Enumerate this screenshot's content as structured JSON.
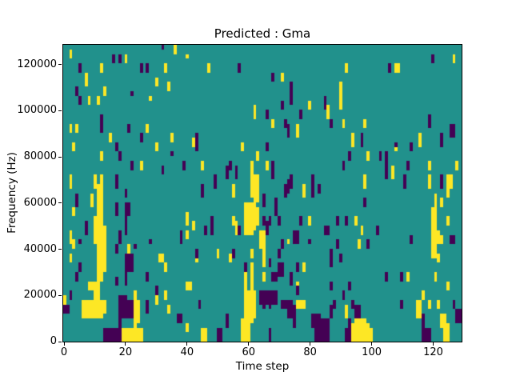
{
  "chart_data": {
    "type": "heatmap",
    "title": "Predicted : Gma",
    "xlabel": "Time step",
    "ylabel": "Frequency (Hz)",
    "x_tick_values": [
      0,
      20,
      40,
      60,
      80,
      100,
      120
    ],
    "x_tick_labels": [
      "0",
      "20",
      "40",
      "60",
      "80",
      "100",
      "120"
    ],
    "y_tick_values": [
      0,
      20000,
      40000,
      60000,
      80000,
      100000,
      120000
    ],
    "y_tick_labels": [
      "0",
      "20000",
      "40000",
      "60000",
      "80000",
      "100000",
      "120000"
    ],
    "x_range": [
      0,
      130
    ],
    "y_range_hz": [
      0,
      128000
    ],
    "grid_cols": 130,
    "grid_rows": 64,
    "colors": {
      "mid_teal": "#21918c",
      "high_yellow": "#fde725",
      "low_purple": "#440154"
    },
    "legend": "none",
    "grid": "off",
    "cells_yellow": [
      [
        2,
        1,
        2
      ],
      [
        36,
        0,
        1
      ],
      [
        20,
        2,
        3
      ],
      [
        40,
        2,
        2
      ],
      [
        127,
        2,
        3
      ],
      [
        12,
        4,
        5
      ],
      [
        33,
        4,
        5
      ],
      [
        47,
        4,
        5
      ],
      [
        92,
        4,
        5
      ],
      [
        108,
        4,
        5
      ],
      [
        109,
        4,
        5
      ],
      [
        7,
        6,
        8
      ],
      [
        71,
        6,
        7
      ],
      [
        30,
        7,
        8
      ],
      [
        34,
        8,
        9
      ],
      [
        90,
        8,
        13
      ],
      [
        13,
        9,
        10
      ],
      [
        8,
        11,
        12
      ],
      [
        11,
        11,
        12
      ],
      [
        28,
        11,
        11
      ],
      [
        80,
        12,
        13
      ],
      [
        62,
        13,
        15
      ],
      [
        86,
        13,
        15
      ],
      [
        68,
        16,
        17
      ],
      [
        91,
        16,
        17
      ],
      [
        98,
        16,
        17
      ],
      [
        2,
        17,
        18
      ],
      [
        4,
        17,
        18
      ],
      [
        27,
        17,
        18
      ],
      [
        76,
        17,
        19
      ],
      [
        15,
        19,
        20
      ],
      [
        35,
        19,
        20
      ],
      [
        42,
        20,
        21
      ],
      [
        94,
        19,
        21
      ],
      [
        116,
        19,
        21
      ],
      [
        3,
        21,
        22
      ],
      [
        30,
        21,
        22
      ],
      [
        58,
        21,
        22
      ],
      [
        108,
        21,
        22
      ],
      [
        12,
        23,
        24
      ],
      [
        63,
        23,
        24
      ],
      [
        99,
        23,
        24
      ],
      [
        25,
        25,
        26
      ],
      [
        45,
        25,
        26
      ],
      [
        61,
        25,
        32
      ],
      [
        66,
        25,
        26
      ],
      [
        119,
        25,
        26
      ],
      [
        128,
        25,
        26
      ],
      [
        107,
        26,
        28
      ],
      [
        2,
        28,
        30
      ],
      [
        10,
        28,
        30
      ],
      [
        12,
        28,
        36
      ],
      [
        62,
        28,
        34
      ],
      [
        63,
        28,
        33
      ],
      [
        98,
        28,
        30
      ],
      [
        119,
        28,
        30
      ],
      [
        125,
        28,
        32
      ],
      [
        126,
        28,
        30
      ],
      [
        11,
        30,
        36
      ],
      [
        55,
        30,
        32
      ],
      [
        78,
        30,
        32
      ],
      [
        9,
        32,
        34
      ],
      [
        121,
        32,
        38
      ],
      [
        123,
        33,
        34
      ],
      [
        59,
        34,
        40
      ],
      [
        60,
        34,
        40
      ],
      [
        61,
        34,
        40
      ],
      [
        3,
        35,
        36
      ],
      [
        62,
        35,
        39
      ],
      [
        63,
        35,
        38
      ],
      [
        120,
        35,
        38
      ],
      [
        40,
        36,
        38
      ],
      [
        55,
        37,
        38
      ],
      [
        80,
        37,
        38
      ],
      [
        95,
        37,
        38
      ],
      [
        125,
        37,
        38
      ],
      [
        10,
        37,
        42
      ],
      [
        11,
        37,
        42
      ],
      [
        12,
        37,
        42
      ],
      [
        56,
        38,
        40
      ],
      [
        42,
        38,
        39
      ],
      [
        13,
        39,
        42
      ],
      [
        97,
        39,
        40
      ],
      [
        120,
        39,
        45
      ],
      [
        121,
        39,
        45
      ],
      [
        2,
        40,
        42
      ],
      [
        40,
        40,
        41
      ],
      [
        64,
        40,
        43
      ],
      [
        65,
        40,
        42
      ],
      [
        122,
        40,
        42
      ],
      [
        123,
        41,
        42
      ],
      [
        3,
        42,
        43
      ],
      [
        11,
        42,
        50
      ],
      [
        12,
        42,
        50
      ],
      [
        13,
        42,
        48
      ],
      [
        96,
        42,
        43
      ],
      [
        73,
        42,
        42
      ],
      [
        21,
        43,
        44
      ],
      [
        65,
        43,
        47
      ],
      [
        50,
        44,
        45
      ],
      [
        61,
        44,
        45
      ],
      [
        2,
        45,
        46
      ],
      [
        31,
        45,
        46
      ],
      [
        32,
        45,
        46
      ],
      [
        43,
        45,
        46
      ],
      [
        54,
        45,
        46
      ],
      [
        122,
        45,
        46
      ],
      [
        33,
        47,
        48
      ],
      [
        61,
        47,
        52
      ],
      [
        78,
        47,
        48
      ],
      [
        59,
        49,
        52
      ],
      [
        65,
        49,
        50
      ],
      [
        112,
        49,
        50
      ],
      [
        121,
        49,
        50
      ],
      [
        8,
        51,
        52
      ],
      [
        9,
        51,
        52
      ],
      [
        10,
        51,
        58
      ],
      [
        11,
        51,
        58
      ],
      [
        40,
        51,
        52
      ],
      [
        41,
        51,
        52
      ],
      [
        76,
        51,
        52
      ],
      [
        125,
        51,
        52
      ],
      [
        23,
        53,
        60
      ],
      [
        33,
        53,
        54
      ],
      [
        59,
        53,
        59
      ],
      [
        60,
        53,
        59
      ],
      [
        61,
        53,
        59
      ],
      [
        62,
        53,
        58
      ],
      [
        117,
        53,
        54
      ],
      [
        0,
        54,
        55
      ],
      [
        30,
        54,
        55
      ],
      [
        24,
        55,
        59
      ],
      [
        6,
        55,
        58
      ],
      [
        7,
        55,
        58
      ],
      [
        8,
        55,
        58
      ],
      [
        9,
        55,
        58
      ],
      [
        12,
        55,
        58
      ],
      [
        13,
        55,
        57
      ],
      [
        76,
        55,
        56
      ],
      [
        77,
        55,
        56
      ],
      [
        78,
        55,
        56
      ],
      [
        115,
        55,
        58
      ],
      [
        116,
        55,
        58
      ],
      [
        119,
        55,
        56
      ],
      [
        122,
        55,
        56
      ],
      [
        34,
        56,
        57
      ],
      [
        92,
        56,
        58
      ],
      [
        58,
        59,
        63
      ],
      [
        95,
        59,
        63
      ],
      [
        96,
        59,
        63
      ],
      [
        97,
        59,
        63
      ],
      [
        98,
        59,
        63
      ],
      [
        123,
        58,
        60
      ],
      [
        124,
        58,
        63
      ],
      [
        40,
        60,
        61
      ],
      [
        59,
        60,
        63
      ],
      [
        60,
        60,
        63
      ],
      [
        94,
        60,
        63
      ],
      [
        99,
        60,
        63
      ],
      [
        125,
        60,
        63
      ],
      [
        19,
        61,
        63
      ],
      [
        20,
        61,
        63
      ],
      [
        21,
        61,
        63
      ],
      [
        22,
        61,
        63
      ],
      [
        23,
        61,
        63
      ],
      [
        24,
        61,
        63
      ],
      [
        25,
        61,
        63
      ],
      [
        45,
        61,
        63
      ],
      [
        46,
        61,
        63
      ],
      [
        100,
        61,
        63
      ]
    ],
    "cells_purple": [
      [
        32,
        0,
        0
      ],
      [
        16,
        2,
        3
      ],
      [
        18,
        2,
        3
      ],
      [
        120,
        2,
        3
      ],
      [
        5,
        4,
        5
      ],
      [
        25,
        4,
        5
      ],
      [
        27,
        4,
        5
      ],
      [
        57,
        4,
        5
      ],
      [
        106,
        4,
        5
      ],
      [
        68,
        6,
        7
      ],
      [
        74,
        8,
        10
      ],
      [
        4,
        9,
        10
      ],
      [
        22,
        10,
        10
      ],
      [
        5,
        11,
        12
      ],
      [
        74,
        11,
        12
      ],
      [
        85,
        11,
        13
      ],
      [
        71,
        12,
        13
      ],
      [
        66,
        14,
        15
      ],
      [
        77,
        14,
        15
      ],
      [
        12,
        15,
        18
      ],
      [
        119,
        15,
        17
      ],
      [
        72,
        16,
        17
      ],
      [
        87,
        16,
        17
      ],
      [
        21,
        17,
        18
      ],
      [
        73,
        17,
        19
      ],
      [
        126,
        17,
        19
      ],
      [
        127,
        17,
        19
      ],
      [
        25,
        19,
        20
      ],
      [
        43,
        19,
        22
      ],
      [
        97,
        19,
        21
      ],
      [
        123,
        19,
        21
      ],
      [
        66,
        21,
        22
      ],
      [
        108,
        21,
        21
      ],
      [
        17,
        21,
        22
      ],
      [
        113,
        21,
        22
      ],
      [
        18,
        23,
        24
      ],
      [
        35,
        23,
        23
      ],
      [
        93,
        23,
        24
      ],
      [
        103,
        23,
        24
      ],
      [
        105,
        23,
        28
      ],
      [
        22,
        25,
        26
      ],
      [
        39,
        25,
        26
      ],
      [
        54,
        25,
        26
      ],
      [
        68,
        25,
        28
      ],
      [
        91,
        25,
        26
      ],
      [
        112,
        25,
        26
      ],
      [
        32,
        26,
        27
      ],
      [
        53,
        26,
        28
      ],
      [
        56,
        26,
        28
      ],
      [
        17,
        28,
        30
      ],
      [
        49,
        28,
        30
      ],
      [
        74,
        28,
        30
      ],
      [
        81,
        28,
        32
      ],
      [
        111,
        28,
        30
      ],
      [
        123,
        28,
        30
      ],
      [
        73,
        29,
        31
      ],
      [
        45,
        30,
        32
      ],
      [
        72,
        30,
        32
      ],
      [
        83,
        30,
        31
      ],
      [
        20,
        31,
        32
      ],
      [
        4,
        32,
        34
      ],
      [
        65,
        32,
        34
      ],
      [
        69,
        33,
        36
      ],
      [
        98,
        33,
        34
      ],
      [
        17,
        34,
        36
      ],
      [
        20,
        34,
        38
      ],
      [
        21,
        34,
        36
      ],
      [
        65,
        37,
        38
      ],
      [
        67,
        37,
        38
      ],
      [
        70,
        37,
        38
      ],
      [
        77,
        37,
        38
      ],
      [
        48,
        37,
        40
      ],
      [
        89,
        37,
        38
      ],
      [
        92,
        37,
        38
      ],
      [
        7,
        38,
        40
      ],
      [
        66,
        38,
        40
      ],
      [
        20,
        39,
        40
      ],
      [
        46,
        39,
        40
      ],
      [
        57,
        39,
        40
      ],
      [
        85,
        39,
        40
      ],
      [
        86,
        39,
        40
      ],
      [
        102,
        39,
        40
      ],
      [
        18,
        40,
        42
      ],
      [
        38,
        40,
        41
      ],
      [
        75,
        40,
        42
      ],
      [
        76,
        40,
        42
      ],
      [
        113,
        41,
        42
      ],
      [
        126,
        41,
        42
      ],
      [
        127,
        41,
        42
      ],
      [
        5,
        42,
        42
      ],
      [
        28,
        42,
        42
      ],
      [
        38,
        42,
        42
      ],
      [
        71,
        42,
        43
      ],
      [
        80,
        42,
        42
      ],
      [
        89,
        42,
        43
      ],
      [
        99,
        42,
        43
      ],
      [
        17,
        43,
        44
      ],
      [
        23,
        43,
        43
      ],
      [
        43,
        44,
        45
      ],
      [
        55,
        44,
        45
      ],
      [
        70,
        44,
        45
      ],
      [
        87,
        44,
        47
      ],
      [
        20,
        45,
        48
      ],
      [
        21,
        45,
        48
      ],
      [
        22,
        45,
        48
      ],
      [
        90,
        45,
        46
      ],
      [
        67,
        46,
        47
      ],
      [
        5,
        47,
        48
      ],
      [
        59,
        47,
        48
      ],
      [
        70,
        47,
        49
      ],
      [
        71,
        47,
        49
      ],
      [
        76,
        47,
        48
      ],
      [
        4,
        49,
        50
      ],
      [
        20,
        49,
        51
      ],
      [
        27,
        49,
        50
      ],
      [
        68,
        49,
        50
      ],
      [
        69,
        49,
        50
      ],
      [
        74,
        49,
        51
      ],
      [
        105,
        49,
        50
      ],
      [
        110,
        49,
        50
      ],
      [
        17,
        50,
        51
      ],
      [
        87,
        51,
        52
      ],
      [
        93,
        51,
        52
      ],
      [
        30,
        52,
        53
      ],
      [
        76,
        52,
        53
      ],
      [
        2,
        53,
        54
      ],
      [
        64,
        53,
        55
      ],
      [
        65,
        53,
        56
      ],
      [
        66,
        53,
        55
      ],
      [
        67,
        53,
        56
      ],
      [
        68,
        53,
        55
      ],
      [
        69,
        53,
        55
      ],
      [
        91,
        53,
        54
      ],
      [
        18,
        54,
        60
      ],
      [
        19,
        54,
        58
      ],
      [
        20,
        54,
        58
      ],
      [
        21,
        55,
        58
      ],
      [
        22,
        55,
        58
      ],
      [
        27,
        55,
        57
      ],
      [
        44,
        55,
        56
      ],
      [
        71,
        55,
        56
      ],
      [
        72,
        55,
        56
      ],
      [
        73,
        55,
        58
      ],
      [
        74,
        55,
        58
      ],
      [
        88,
        55,
        56
      ],
      [
        94,
        55,
        56
      ],
      [
        110,
        55,
        56
      ],
      [
        127,
        55,
        56
      ],
      [
        0,
        56,
        57
      ],
      [
        1,
        56,
        57
      ],
      [
        75,
        56,
        60
      ],
      [
        87,
        56,
        58
      ],
      [
        95,
        56,
        58
      ],
      [
        96,
        56,
        58
      ],
      [
        37,
        58,
        59
      ],
      [
        38,
        58,
        59
      ],
      [
        53,
        58,
        60
      ],
      [
        81,
        58,
        60
      ],
      [
        117,
        58,
        60
      ],
      [
        128,
        57,
        59
      ],
      [
        129,
        57,
        59
      ],
      [
        93,
        59,
        60
      ],
      [
        82,
        58,
        63
      ],
      [
        83,
        58,
        63
      ],
      [
        84,
        59,
        63
      ],
      [
        85,
        59,
        63
      ],
      [
        86,
        59,
        63
      ],
      [
        13,
        61,
        63
      ],
      [
        14,
        61,
        63
      ],
      [
        15,
        61,
        63
      ],
      [
        16,
        61,
        63
      ],
      [
        17,
        61,
        63
      ],
      [
        18,
        61,
        63
      ],
      [
        50,
        61,
        63
      ],
      [
        51,
        61,
        63
      ],
      [
        67,
        61,
        63
      ],
      [
        92,
        61,
        63
      ],
      [
        93,
        61,
        63
      ],
      [
        117,
        61,
        63
      ],
      [
        118,
        61,
        63
      ],
      [
        119,
        61,
        63
      ]
    ]
  }
}
